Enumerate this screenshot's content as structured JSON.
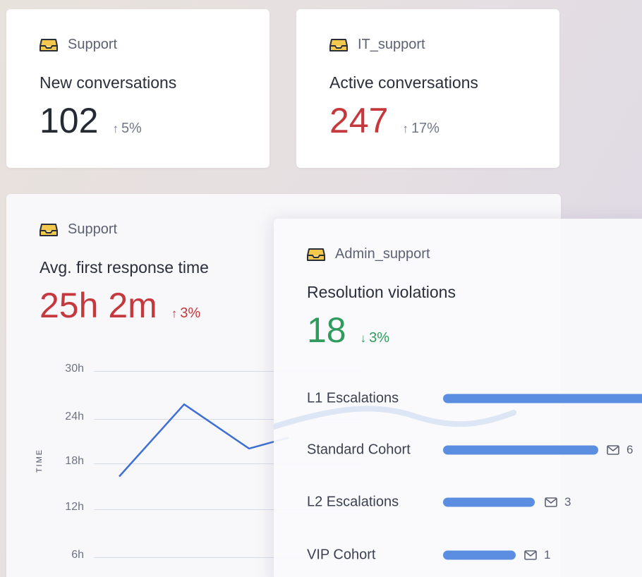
{
  "cards": {
    "new": {
      "inbox": "Support",
      "title": "New conversations",
      "value": "102",
      "delta": "5%",
      "delta_direction": "up"
    },
    "active": {
      "inbox": "IT_support",
      "title": "Active conversations",
      "value": "247",
      "delta": "17%",
      "delta_direction": "up"
    },
    "response": {
      "inbox": "Support",
      "title": "Avg. first response time",
      "value": "25h 2m",
      "delta": "3%",
      "delta_direction": "up",
      "chart": {
        "y_axis_title": "TIME",
        "y_ticks": [
          "30h",
          "24h",
          "18h",
          "12h",
          "6h"
        ],
        "points_hours": [
          16.5,
          25.8,
          20.1,
          21.5
        ]
      }
    },
    "violations": {
      "inbox": "Admin_support",
      "title": "Resolution violations",
      "value": "18",
      "delta": "3%",
      "delta_direction": "down",
      "rows": [
        {
          "label": "L1 Escalations",
          "count": ""
        },
        {
          "label": "Standard Cohort",
          "count": "6"
        },
        {
          "label": "L2 Escalations",
          "count": "3"
        },
        {
          "label": "VIP Cohort",
          "count": "1"
        }
      ]
    }
  },
  "icons": {
    "inbox": "inbox-icon",
    "mail": "mail-icon",
    "arrow_up": "↑",
    "arrow_down": "↓"
  },
  "colors": {
    "negative": "#c5383d",
    "positive": "#2f9b5c",
    "neutral": "#262a33",
    "bar": "#5b8de0",
    "line": "#3d6fd6",
    "inbox_icon_fill": "#f2c94c"
  }
}
